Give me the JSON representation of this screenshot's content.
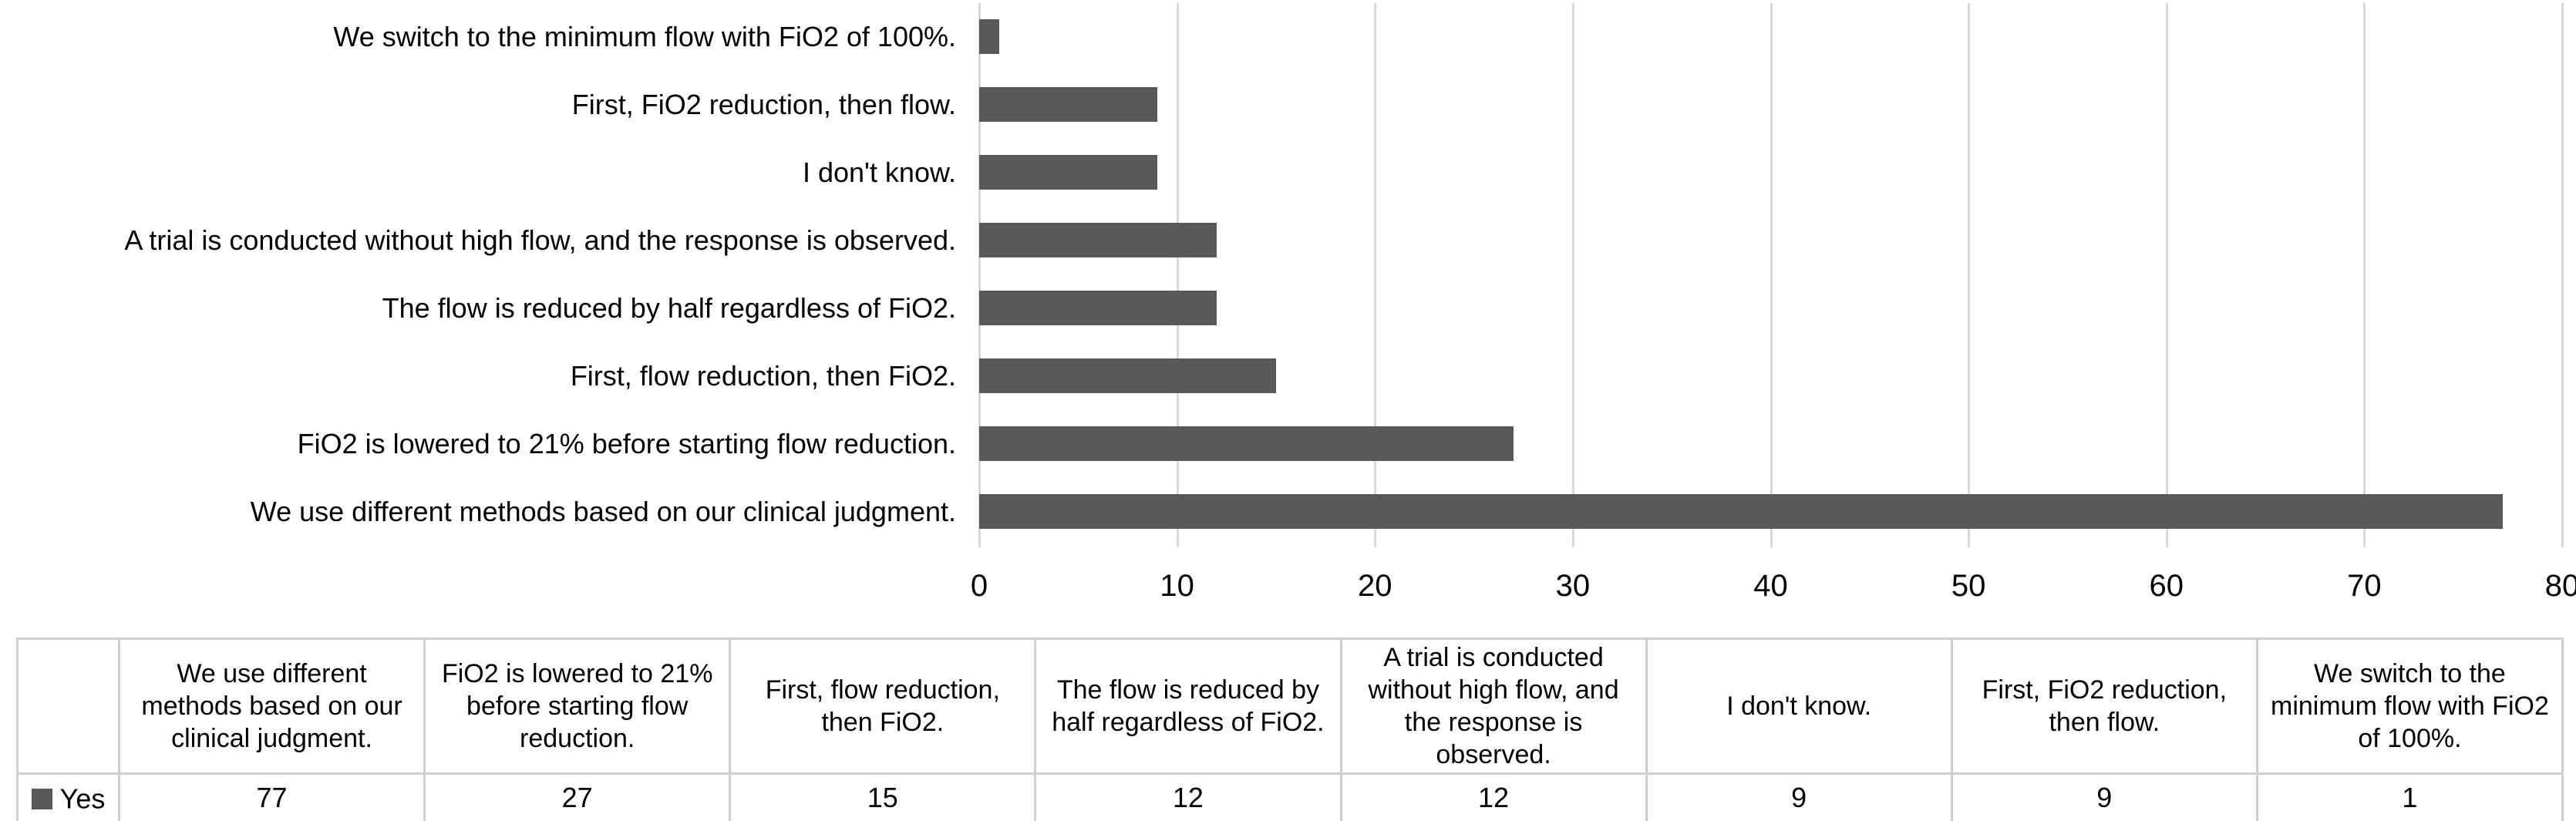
{
  "chart_data": {
    "type": "bar",
    "orientation": "horizontal",
    "title": "",
    "xlabel": "",
    "ylabel": "",
    "categories": [
      "We switch to the minimum flow with FiO2 of 100%.",
      "First, FiO2 reduction, then flow.",
      "I don't know.",
      "A trial is conducted without high flow, and the response is observed.",
      "The flow is reduced by half regardless of FiO2.",
      "First, flow reduction, then FiO2.",
      "FiO2 is lowered to 21% before starting flow reduction.",
      "We use different methods based on our clinical judgment."
    ],
    "series": [
      {
        "name": "Yes",
        "values": [
          1,
          9,
          9,
          12,
          12,
          15,
          27,
          77
        ]
      }
    ],
    "xlim": [
      0,
      80
    ],
    "x_ticks": [
      0,
      10,
      20,
      30,
      40,
      50,
      60,
      70,
      80
    ],
    "grid": true,
    "legend_position": "bottom-table",
    "colors": {
      "bar": "#595959",
      "gridline": "#d9d9d9",
      "table_border": "#cfcfcf",
      "text": "#000000"
    }
  },
  "data_table": {
    "legend_label": "Yes",
    "columns": [
      "We use different methods based on our clinical judgment.",
      "FiO2 is lowered to 21% before starting flow reduction.",
      "First, flow reduction, then FiO2.",
      "The flow is reduced by half regardless of FiO2.",
      "A trial is conducted without high flow, and the response is observed.",
      "I don't know.",
      "First, FiO2 reduction, then flow.",
      "We switch to the minimum flow with FiO2 of 100%."
    ],
    "values": [
      77,
      27,
      15,
      12,
      12,
      9,
      9,
      1
    ]
  }
}
